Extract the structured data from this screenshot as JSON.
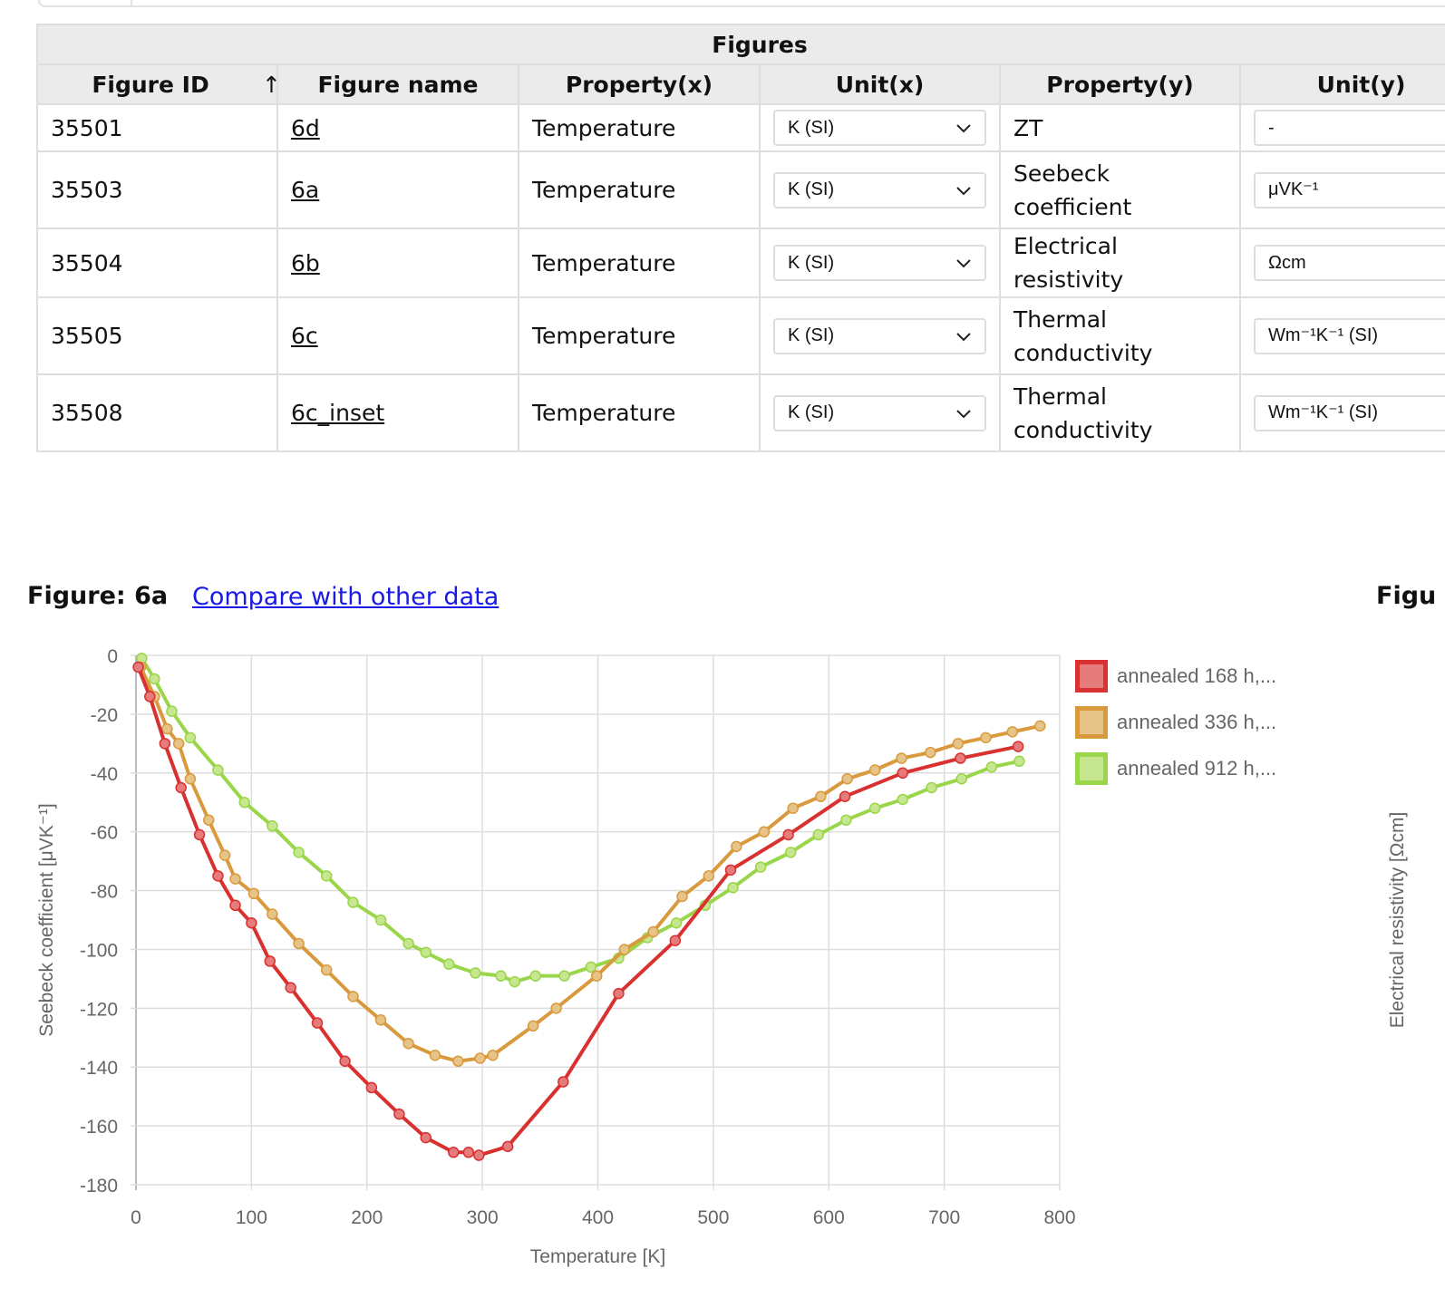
{
  "table": {
    "caption": "Figures",
    "headers": [
      "Figure ID",
      "Figure name",
      "Property(x)",
      "Unit(x)",
      "Property(y)",
      "Unit(y)"
    ],
    "sort_indicator": "↑",
    "rows": [
      {
        "id": "35501",
        "name": "6d",
        "prop_x": "Temperature",
        "unit_x": "K (SI)",
        "prop_y": "ZT",
        "unit_y": "-"
      },
      {
        "id": "35503",
        "name": "6a",
        "prop_x": "Temperature",
        "unit_x": "K (SI)",
        "prop_y": "Seebeck coefficient",
        "unit_y": "μVK⁻¹"
      },
      {
        "id": "35504",
        "name": "6b",
        "prop_x": "Temperature",
        "unit_x": "K (SI)",
        "prop_y": "Electrical resistivity",
        "unit_y": "Ωcm"
      },
      {
        "id": "35505",
        "name": "6c",
        "prop_x": "Temperature",
        "unit_x": "K (SI)",
        "prop_y": "Thermal conductivity",
        "unit_y": "Wm⁻¹K⁻¹ (SI)"
      },
      {
        "id": "35508",
        "name": "6c_inset",
        "prop_x": "Temperature",
        "unit_x": "K (SI)",
        "prop_y": "Thermal conductivity",
        "unit_y": "Wm⁻¹K⁻¹ (SI)"
      }
    ]
  },
  "figure": {
    "title": "Figure: 6a",
    "compare_link": "Compare with other data",
    "next_figure_title": "Figu",
    "next_ylabel": "Electrical resistivity [Ωcm]"
  },
  "chart_data": {
    "type": "line",
    "xlabel": "Temperature [K]",
    "ylabel": "Seebeck coefficient [μVK⁻¹]",
    "xlim": [
      0,
      800
    ],
    "ylim": [
      -180,
      0
    ],
    "xticks": [
      0,
      100,
      200,
      300,
      400,
      500,
      600,
      700,
      800
    ],
    "yticks": [
      0,
      -20,
      -40,
      -60,
      -80,
      -100,
      -120,
      -140,
      -160,
      -180
    ],
    "grid": true,
    "legend": "right",
    "series": [
      {
        "name": "annealed 168 h,...",
        "color": "#d93030",
        "fill": "#e57b7b",
        "x": [
          2,
          12,
          25,
          39,
          55,
          71,
          86,
          100,
          116,
          134,
          157,
          181,
          204,
          228,
          251,
          275,
          288,
          297,
          322,
          370,
          418,
          467,
          515,
          565,
          614,
          664,
          714,
          764
        ],
        "y": [
          -4,
          -14,
          -30,
          -45,
          -61,
          -75,
          -85,
          -91,
          -104,
          -113,
          -125,
          -138,
          -147,
          -156,
          -164,
          -169,
          -169,
          -170,
          -167,
          -145,
          -115,
          -97,
          -73,
          -61,
          -48,
          -40,
          -35,
          -31
        ]
      },
      {
        "name": "annealed 336 h,...",
        "color": "#d99a3e",
        "fill": "#e6c387",
        "x": [
          4,
          16,
          27,
          37,
          47,
          63,
          77,
          86,
          102,
          118,
          141,
          165,
          188,
          212,
          236,
          259,
          279,
          298,
          309,
          344,
          364,
          399,
          423,
          448,
          473,
          496,
          520,
          544,
          569,
          593,
          616,
          640,
          663,
          688,
          712,
          736,
          759,
          783
        ],
        "y": [
          -4,
          -14,
          -25,
          -30,
          -42,
          -56,
          -68,
          -76,
          -81,
          -88,
          -98,
          -107,
          -116,
          -124,
          -132,
          -136,
          -138,
          -137,
          -136,
          -126,
          -120,
          -109,
          -100,
          -94,
          -82,
          -75,
          -65,
          -60,
          -52,
          -48,
          -42,
          -39,
          -35,
          -33,
          -30,
          -28,
          -26,
          -24
        ]
      },
      {
        "name": "annealed 912 h,...",
        "color": "#9ad64a",
        "fill": "#c6e68f",
        "x": [
          5,
          16,
          31,
          47,
          71,
          94,
          118,
          141,
          165,
          188,
          212,
          236,
          251,
          271,
          294,
          316,
          328,
          346,
          371,
          394,
          418,
          443,
          468,
          493,
          517,
          541,
          567,
          591,
          615,
          640,
          664,
          689,
          715,
          741,
          765
        ],
        "y": [
          -1,
          -8,
          -19,
          -28,
          -39,
          -50,
          -58,
          -67,
          -75,
          -84,
          -90,
          -98,
          -101,
          -105,
          -108,
          -109,
          -111,
          -109,
          -109,
          -106,
          -103,
          -96,
          -91,
          -85,
          -79,
          -72,
          -67,
          -61,
          -56,
          -52,
          -49,
          -45,
          -42,
          -38,
          -36
        ]
      }
    ]
  }
}
